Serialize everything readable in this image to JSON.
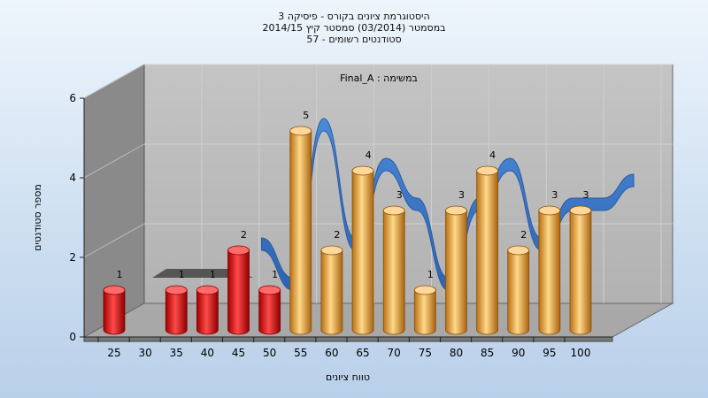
{
  "chart_data": {
    "type": "bar",
    "title_lines": [
      "היסטוגרמת ציונים בקורס - פיסיקה 3",
      "במסמטר  (03/2014)  סמסטר קיץ 2014/15",
      "סטודנטים רשומים - 57"
    ],
    "assignment_label": "Final_A : במשימה",
    "xlabel": "טווח ציונים",
    "ylabel": "מספר סטודנטים",
    "ylim": [
      0,
      6
    ],
    "yticks": [
      "0",
      "2",
      "4",
      "6"
    ],
    "xticks": [
      "25",
      "30",
      "35",
      "40",
      "45",
      "50",
      "55",
      "60",
      "65",
      "70",
      "75",
      "80",
      "85",
      "90",
      "95",
      "100"
    ],
    "bars": [
      {
        "x": 25,
        "value": 1,
        "color": "red"
      },
      {
        "x": 35,
        "value": 1,
        "color": "red"
      },
      {
        "x": 40,
        "value": 1,
        "color": "red"
      },
      {
        "x": 45,
        "value": 2,
        "color": "red"
      },
      {
        "x": 50,
        "value": 1,
        "color": "red"
      },
      {
        "x": 55,
        "value": 5,
        "color": "gold"
      },
      {
        "x": 60,
        "value": 2,
        "color": "gold"
      },
      {
        "x": 65,
        "value": 4,
        "color": "gold"
      },
      {
        "x": 70,
        "value": 3,
        "color": "gold"
      },
      {
        "x": 75,
        "value": 1,
        "color": "gold"
      },
      {
        "x": 80,
        "value": 3,
        "color": "gold"
      },
      {
        "x": 85,
        "value": 4,
        "color": "gold"
      },
      {
        "x": 90,
        "value": 2,
        "color": "gold"
      },
      {
        "x": 95,
        "value": 3,
        "color": "gold"
      },
      {
        "x": 100,
        "value": 3,
        "color": "gold"
      }
    ],
    "grid": true,
    "colors": {
      "fail": "#e51a1a",
      "pass": "#e5a440",
      "ribbon": "#3a78c8",
      "wall": "#888888",
      "back": "#b8b8b8"
    }
  }
}
